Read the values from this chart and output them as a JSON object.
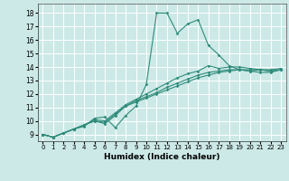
{
  "xlabel": "Humidex (Indice chaleur)",
  "bg_color": "#cce9e7",
  "grid_color": "#ffffff",
  "line_color": "#2e8b7a",
  "xlim": [
    -0.5,
    23.5
  ],
  "ylim": [
    8.5,
    18.7
  ],
  "xticks": [
    0,
    1,
    2,
    3,
    4,
    5,
    6,
    7,
    8,
    9,
    10,
    11,
    12,
    13,
    14,
    15,
    16,
    17,
    18,
    19,
    20,
    21,
    22,
    23
  ],
  "yticks": [
    9,
    10,
    11,
    12,
    13,
    14,
    15,
    16,
    17,
    18
  ],
  "series": [
    {
      "x": [
        0,
        1,
        2,
        3,
        4,
        5,
        6,
        7,
        8,
        9,
        10,
        11,
        12,
        13,
        14,
        15,
        16,
        17,
        18,
        19,
        20,
        21,
        22,
        23
      ],
      "y": [
        9.0,
        8.8,
        9.1,
        9.4,
        9.6,
        10.2,
        10.3,
        9.5,
        10.4,
        11.1,
        12.7,
        18.0,
        18.0,
        16.5,
        17.2,
        17.5,
        15.6,
        14.9,
        14.1,
        13.8,
        13.7,
        13.6,
        13.6,
        13.8
      ]
    },
    {
      "x": [
        0,
        1,
        2,
        3,
        4,
        5,
        6,
        7,
        8,
        9,
        10,
        11,
        12,
        13,
        14,
        15,
        16,
        17,
        18,
        19,
        20,
        21,
        22,
        23
      ],
      "y": [
        9.0,
        8.8,
        9.1,
        9.4,
        9.7,
        10.0,
        9.8,
        10.4,
        11.1,
        11.5,
        11.8,
        12.1,
        12.5,
        12.8,
        13.1,
        13.4,
        13.6,
        13.7,
        13.8,
        13.8,
        13.7,
        13.8,
        13.7,
        13.8
      ]
    },
    {
      "x": [
        0,
        1,
        2,
        3,
        4,
        5,
        6,
        7,
        8,
        9,
        10,
        11,
        12,
        13,
        14,
        15,
        16,
        17,
        18,
        19,
        20,
        21,
        22,
        23
      ],
      "y": [
        9.0,
        8.8,
        9.1,
        9.4,
        9.7,
        10.0,
        9.9,
        10.5,
        11.1,
        11.4,
        11.7,
        12.0,
        12.3,
        12.6,
        12.9,
        13.2,
        13.4,
        13.6,
        13.7,
        13.8,
        13.8,
        13.8,
        13.8,
        13.9
      ]
    },
    {
      "x": [
        0,
        1,
        2,
        3,
        4,
        5,
        6,
        7,
        8,
        9,
        10,
        11,
        12,
        13,
        14,
        15,
        16,
        17,
        18,
        19,
        20,
        21,
        22,
        23
      ],
      "y": [
        9.0,
        8.8,
        9.1,
        9.4,
        9.7,
        10.1,
        10.0,
        10.6,
        11.2,
        11.6,
        12.0,
        12.4,
        12.8,
        13.2,
        13.5,
        13.7,
        14.1,
        13.9,
        14.0,
        14.0,
        13.9,
        13.8,
        13.7,
        13.8
      ]
    }
  ]
}
